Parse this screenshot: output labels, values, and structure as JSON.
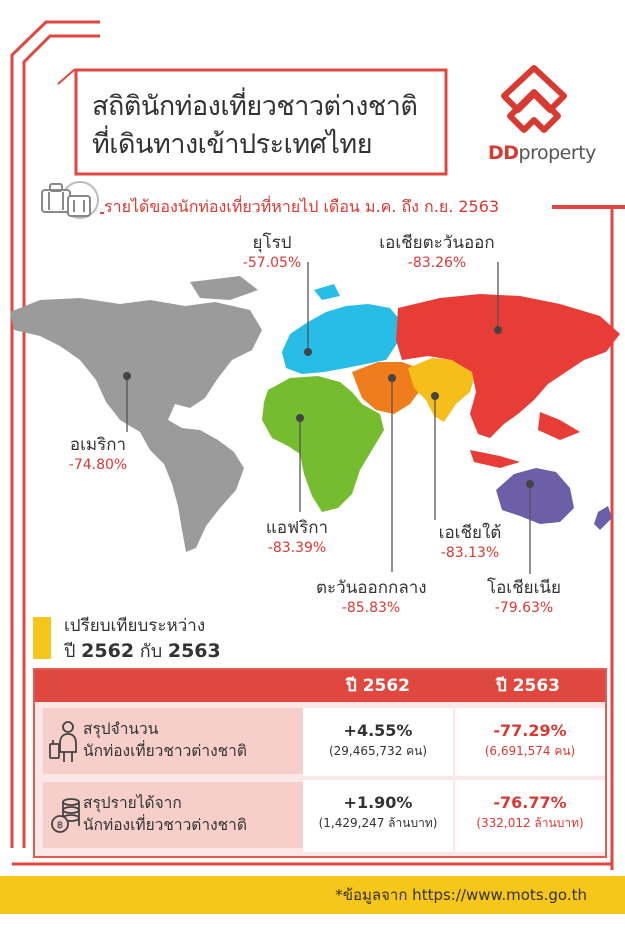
{
  "title": {
    "line1": "สถิตินักท่องเที่ยวชาวต่างชาติ",
    "line2": "ที่เดินทางเข้าประเทศไทย"
  },
  "logo": {
    "text_dd": "DD",
    "text_property": "property",
    "color": "#d83a32"
  },
  "revenue_heading": "รายได้ของนักท่องเที่ยวที่หายไป เดือน ม.ค. ถึง ก.ย. 2563",
  "regions": {
    "europe": {
      "name": "ยุโรป",
      "pct": "-57.05%",
      "color": "#27bde6"
    },
    "east_asia": {
      "name": "เอเชียตะวันออก",
      "pct": "-83.26%",
      "color": "#e73d36"
    },
    "america": {
      "name": "อเมริกา",
      "pct": "-74.80%",
      "color": "#9b9b9b"
    },
    "africa": {
      "name": "แอฟริกา",
      "pct": "-83.39%",
      "color": "#75bd2e"
    },
    "middle_east": {
      "name": "ตะวันออกกลาง",
      "pct": "-85.83%",
      "color": "#f07d1b"
    },
    "south_asia": {
      "name": "เอเชียใต้",
      "pct": "-83.13%",
      "color": "#f6be1a"
    },
    "oceania": {
      "name": "โอเชียเนีย",
      "pct": "-79.63%",
      "color": "#6d5ea8"
    }
  },
  "compare": {
    "line1": "เปรียบเทียบระหว่าง",
    "prefix": "ปี",
    "year1": "2562",
    "joiner": "กับ",
    "year2": "2563"
  },
  "table": {
    "headers": [
      "ปี 2562",
      "ปี 2563"
    ],
    "rows": [
      {
        "label1": "สรุปจำนวน",
        "label2": "นักท่องเที่ยวชาวต่างชาติ",
        "v2562": "+4.55%",
        "s2562": "(29,465,732 คน)",
        "v2563": "-77.29%",
        "s2563": "(6,691,574 คน)"
      },
      {
        "label1": "สรุปรายได้จาก",
        "label2": "นักท่องเที่ยวชาวต่างชาติ",
        "v2562": "+1.90%",
        "s2562": "(1,429,247 ล้านบาท)",
        "v2563": "-76.77%",
        "s2563": "(332,012 ล้านบาท)"
      }
    ]
  },
  "footer": "*ข้อมูลจาก https://www.mots.go.th",
  "colors": {
    "accent": "#e0473e",
    "yellow": "#f7c61b",
    "pink": "#f6cfcb"
  }
}
